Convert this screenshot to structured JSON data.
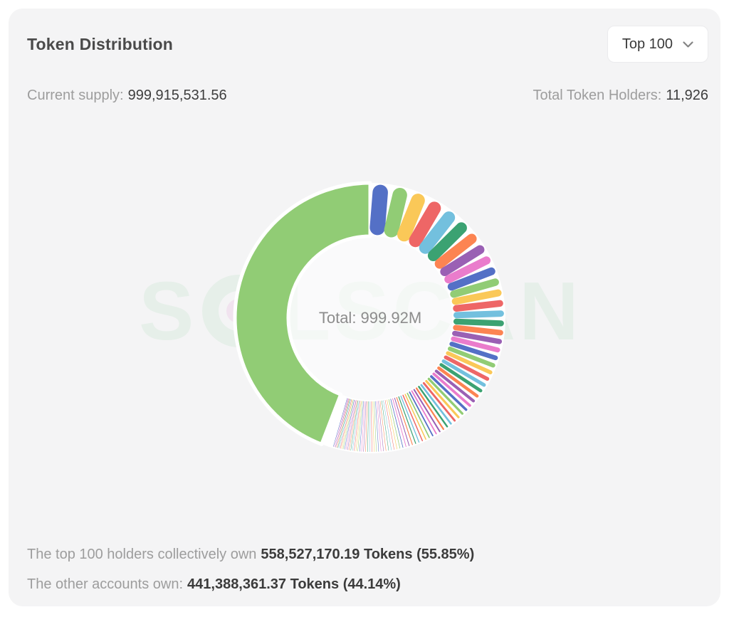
{
  "card": {
    "title": "Token Distribution",
    "dropdown": {
      "value": "Top 100"
    },
    "stats": {
      "supply_label": "Current supply:",
      "supply_value": "999,915,531.56",
      "holders_label": "Total Token Holders:",
      "holders_value": "11,926"
    },
    "footer": {
      "line1_label": "The top 100 holders collectively own",
      "line1_value": "558,527,170.19 Tokens (55.85%)",
      "line2_label": "The other accounts own:",
      "line2_value": "441,388,361.37 Tokens (44.14%)"
    },
    "watermark_left": "S",
    "watermark_right": "LSCAN"
  },
  "chart_data": {
    "type": "pie",
    "subtype": "donut",
    "title": "Token Distribution",
    "center_label": "Total: 999.92M",
    "total_supply": 999915531.56,
    "total_display": "999.92M",
    "total_holders": 11926,
    "top100_tokens": 558527170.19,
    "top100_percent": 55.85,
    "others_tokens": 441388361.37,
    "others_percent": 44.14,
    "start_angle_deg": 0,
    "direction": "clockwise",
    "legend": "none",
    "border_color": "#ffffff",
    "others_color": "#91cc75",
    "palette": [
      "#5470c6",
      "#91cc75",
      "#fac858",
      "#ee6666",
      "#73c0de",
      "#3ba272",
      "#fc8452",
      "#9a60b4",
      "#ea7ccc"
    ],
    "holder_weights_percent": [
      2.3,
      2.2,
      2.1,
      2.0,
      1.9,
      1.75,
      1.6,
      1.45,
      1.35,
      1.3,
      1.25,
      1.2,
      1.15,
      1.1,
      1.05,
      1.0,
      0.96,
      0.92,
      0.88,
      0.84,
      0.8,
      0.77,
      0.74,
      0.71,
      0.68,
      0.65,
      0.62,
      0.6,
      0.58,
      0.56,
      0.54,
      0.52,
      0.5,
      0.48,
      0.46,
      0.44,
      0.43,
      0.42,
      0.41,
      0.4,
      0.39,
      0.38,
      0.37,
      0.36,
      0.35,
      0.34,
      0.33,
      0.32,
      0.31,
      0.3,
      0.29,
      0.28,
      0.27,
      0.26,
      0.25,
      0.245,
      0.24,
      0.235,
      0.23,
      0.225,
      0.22,
      0.215,
      0.21,
      0.205,
      0.2,
      0.195,
      0.19,
      0.185,
      0.18,
      0.175,
      0.17,
      0.165,
      0.16,
      0.155,
      0.15,
      0.145,
      0.14,
      0.135,
      0.13,
      0.125,
      0.12,
      0.115,
      0.11,
      0.105,
      0.1,
      0.095,
      0.09,
      0.085,
      0.08,
      0.075,
      0.07,
      0.065,
      0.06,
      0.055,
      0.05,
      0.045,
      0.04,
      0.035,
      0.03,
      0.025
    ]
  }
}
